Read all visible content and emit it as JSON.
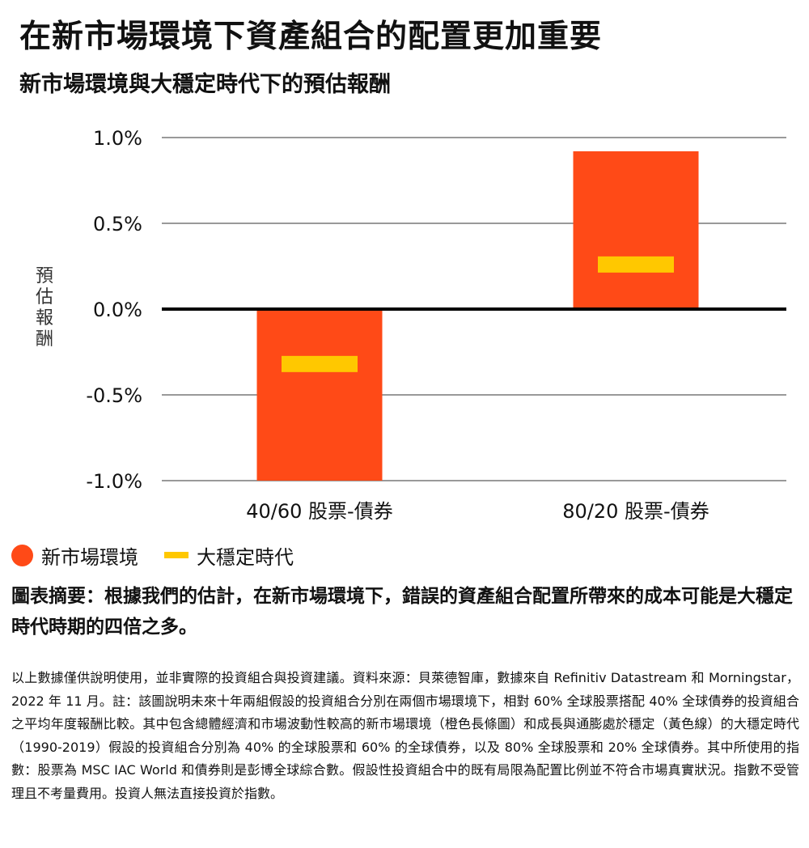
{
  "header": {
    "title": "在新市場環境下資產組合的配置更加重要",
    "subtitle": "新市場環境與大穩定時代下的預估報酬"
  },
  "colors": {
    "new_market": "#ff4a17",
    "great_moderation": "#ffc800",
    "zero_line": "#000000",
    "grid": "#333333"
  },
  "chart_data": {
    "type": "bar",
    "ylabel": "預估報酬",
    "ylim": [
      -1.0,
      1.0
    ],
    "yticks": [
      1.0,
      0.5,
      0.0,
      -0.5,
      -1.0
    ],
    "ytick_labels": [
      "1.0%",
      "0.5%",
      "0.0%",
      "-0.5%",
      "-1.0%"
    ],
    "categories": [
      "40/60 股票-債券",
      "80/20 股票-債券"
    ],
    "series": [
      {
        "name": "新市場環境",
        "type": "bar",
        "values": [
          -1.0,
          0.92
        ]
      },
      {
        "name": "大穩定時代",
        "type": "marker",
        "values": [
          -0.32,
          0.26
        ]
      }
    ]
  },
  "legend": {
    "new_market_label": "新市場環境",
    "great_moderation_label": "大穩定時代"
  },
  "summary": "圖表摘要：根據我們的估計，在新市場環境下，錯誤的資產組合配置所帶來的成本可能是大穩定時代時期的四倍之多。",
  "footnote": "以上數據僅供說明使用，並非實際的投資組合與投資建議。資料來源：貝萊德智庫，數據來自 Refinitiv Datastream 和 Morningstar，2022 年 11 月。註：該圖說明未來十年兩組假設的投資組合分別在兩個市場環境下，相對 60% 全球股票搭配 40% 全球債券的投資組合之平均年度報酬比較。其中包含總體經濟和市場波動性較高的新市場環境（橙色長條圖）和成長與通膨處於穩定（黃色線）的大穩定時代（1990-2019）假設的投資組合分別為 40% 的全球股票和 60% 的全球債券，以及 80% 全球股票和 20% 全球債券。其中所使用的指數：股票為 MSC IAC World 和債券則是彭博全球綜合數。假設性投資組合中的既有局限為配置比例並不符合市場真實狀況。指數不受管理且不考量費用。投資人無法直接投資於指數。"
}
